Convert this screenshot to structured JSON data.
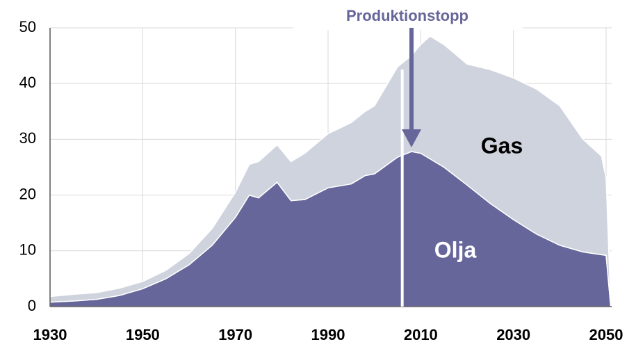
{
  "chart_data": {
    "type": "stacked_area",
    "x": [
      1930,
      1935,
      1940,
      1945,
      1950,
      1955,
      1960,
      1965,
      1970,
      1973,
      1975,
      1979,
      1982,
      1985,
      1990,
      1995,
      1998,
      2000,
      2005,
      2008,
      2010,
      2012,
      2015,
      2020,
      2025,
      2030,
      2035,
      2040,
      2045,
      2049,
      2050,
      2051
    ],
    "series": [
      {
        "name": "Olja",
        "color": "#67669a",
        "values": [
          0.8,
          1.0,
          1.3,
          2.0,
          3.2,
          5.0,
          7.5,
          11,
          16,
          20,
          19.5,
          22.3,
          19,
          19.2,
          21.3,
          22,
          23.5,
          23.8,
          26.8,
          27.8,
          27.5,
          26.5,
          25,
          21.8,
          18.5,
          15.6,
          13,
          11,
          9.8,
          9.3,
          9.2,
          0
        ]
      },
      {
        "name": "Gas",
        "color": "#cfd3de",
        "values": [
          1.0,
          1.2,
          1.2,
          1.3,
          1.3,
          1.5,
          2.0,
          3.0,
          4.5,
          5.5,
          6.5,
          6.7,
          7.0,
          8.3,
          9.7,
          11,
          11.5,
          12.2,
          16.2,
          17.2,
          19.5,
          22,
          22,
          21.7,
          24,
          25.4,
          26,
          25,
          20.2,
          17.7,
          13.8,
          0
        ]
      }
    ],
    "xlim": [
      1930,
      2051.2
    ],
    "xticks": [
      1930,
      1950,
      1970,
      1990,
      2010,
      2030,
      2050
    ],
    "ylim": [
      0,
      50
    ],
    "yticks": [
      0,
      10,
      20,
      30,
      40,
      50
    ],
    "grid": true,
    "annotation": {
      "text": "Produktionstopp",
      "x": 2008,
      "y": 27.8
    },
    "marker_line_x": 2006
  }
}
